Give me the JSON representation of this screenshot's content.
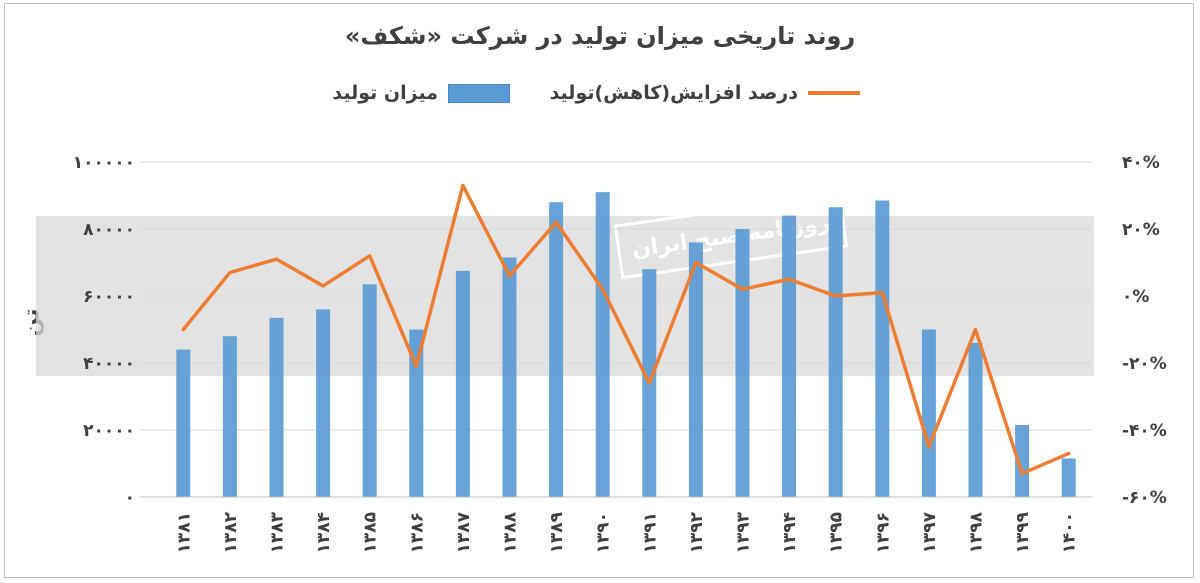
{
  "chart_data": {
    "type": "bar+line",
    "title": "روند تاریخی میزان تولید در شرکت «شکف»",
    "unit_label": "تن",
    "watermark": "روزنامه صبح ایران",
    "categories": [
      "۱۳۸۱",
      "۱۳۸۲",
      "۱۳۸۳",
      "۱۳۸۴",
      "۱۳۸۵",
      "۱۳۸۶",
      "۱۳۸۷",
      "۱۳۸۸",
      "۱۳۸۹",
      "۱۳۹۰",
      "۱۳۹۱",
      "۱۳۹۲",
      "۱۳۹۳",
      "۱۳۹۴",
      "۱۳۹۵",
      "۱۳۹۶",
      "۱۳۹۷",
      "۱۳۹۸",
      "۱۳۹۹",
      "۱۴۰۰"
    ],
    "series": [
      {
        "name": "میزان تولید",
        "type": "bar",
        "axis": "left",
        "color": "#5b9bd5",
        "values": [
          44000,
          48000,
          53500,
          56000,
          63500,
          50000,
          67500,
          71500,
          88000,
          91000,
          68000,
          76000,
          80000,
          84000,
          86500,
          88500,
          50000,
          46000,
          21500,
          11500
        ]
      },
      {
        "name": "درصد افزایش(کاهش)تولید",
        "type": "line",
        "axis": "right",
        "color": "#ed7d31",
        "values": [
          -0.1,
          0.07,
          0.11,
          0.03,
          0.12,
          -0.21,
          0.33,
          0.06,
          0.22,
          0.02,
          -0.26,
          0.1,
          0.02,
          0.05,
          0.0,
          0.01,
          -0.45,
          -0.1,
          -0.53,
          -0.47
        ]
      }
    ],
    "y_left": {
      "min": 0,
      "max": 100000,
      "ticks": [
        0,
        20000,
        40000,
        60000,
        80000,
        100000
      ],
      "tick_labels": [
        "۰",
        "۲۰۰۰۰",
        "۴۰۰۰۰",
        "۶۰۰۰۰",
        "۸۰۰۰۰",
        "۱۰۰۰۰۰"
      ]
    },
    "y_right": {
      "min": -0.6,
      "max": 0.4,
      "ticks": [
        -0.6,
        -0.4,
        -0.2,
        0.0,
        0.2,
        0.4
      ],
      "tick_labels": [
        "-۶۰%",
        "-۴۰%",
        "-۲۰%",
        "۰%",
        "۲۰%",
        "۴۰%"
      ]
    },
    "grid": true,
    "legend_position": "top"
  }
}
